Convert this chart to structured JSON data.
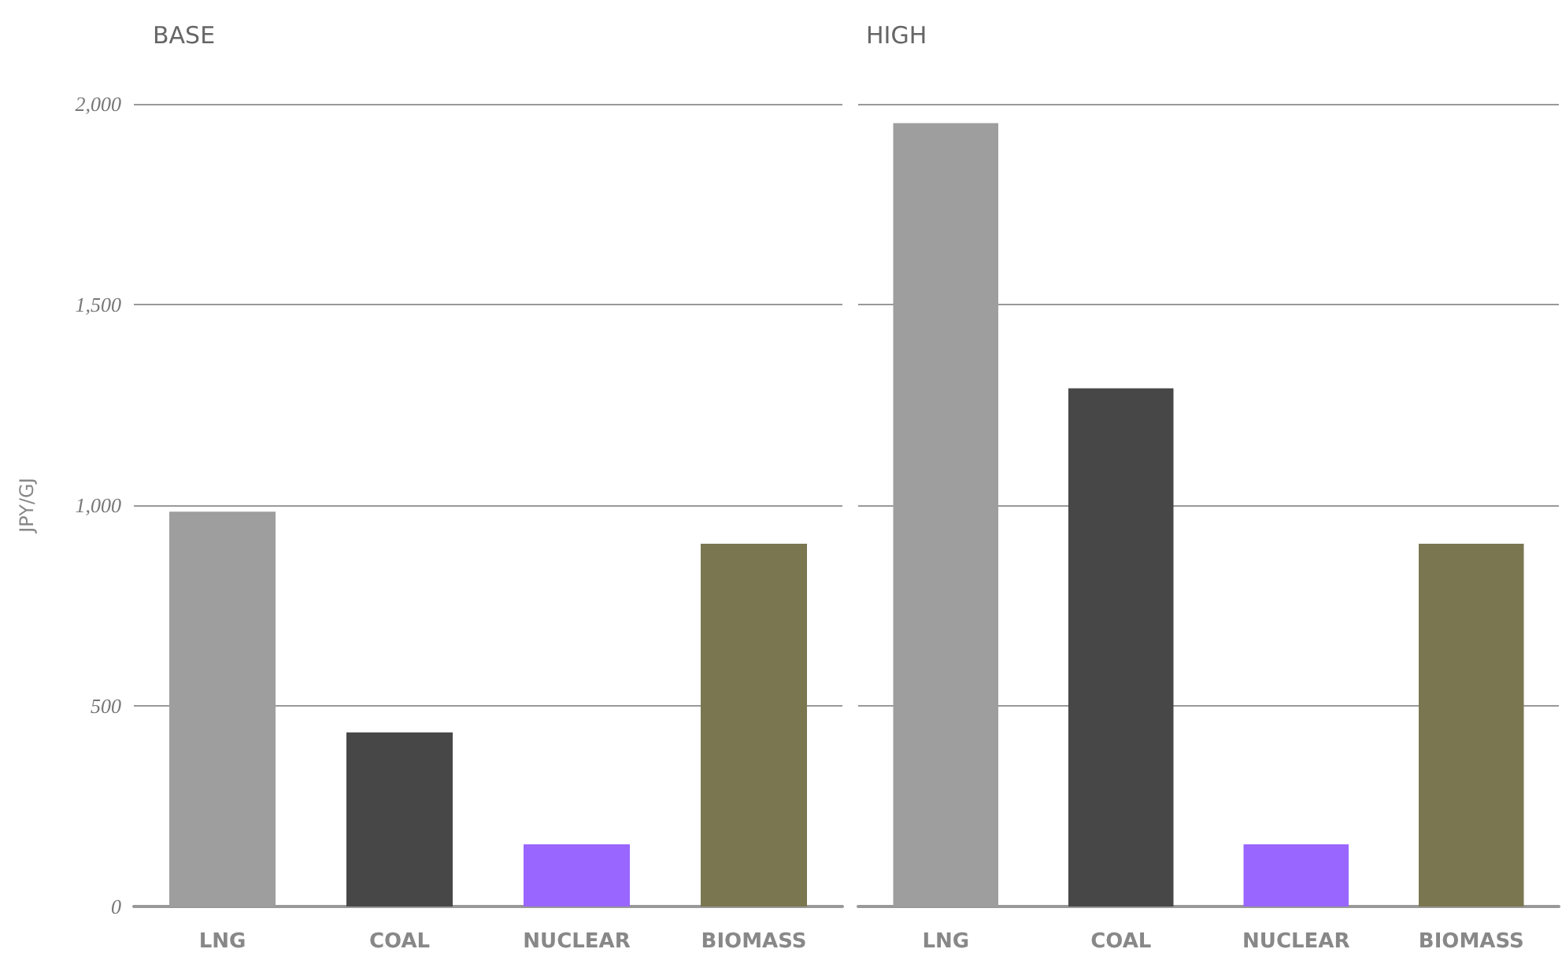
{
  "chart_data": [
    {
      "type": "bar",
      "title": "BASE",
      "ylabel": "JPY/GJ",
      "categories": [
        "LNG",
        "COAL",
        "NUCLEAR",
        "BIOMASS"
      ],
      "values": [
        984,
        434,
        155,
        904
      ],
      "colors": [
        "#9e9e9e",
        "#474747",
        "#9966ff",
        "#7a7650"
      ],
      "ylim": [
        0,
        2000
      ],
      "yticks": [
        {
          "value": 0,
          "label": "0"
        },
        {
          "value": 500,
          "label": "500"
        },
        {
          "value": 1000,
          "label": "1,000"
        },
        {
          "value": 1500,
          "label": "1,500"
        },
        {
          "value": 2000,
          "label": "2,000"
        }
      ],
      "grid": "y"
    },
    {
      "type": "bar",
      "title": "HIGH",
      "categories": [
        "LNG",
        "COAL",
        "NUCLEAR",
        "BIOMASS"
      ],
      "values": [
        1952,
        1291,
        155,
        904
      ],
      "colors": [
        "#9e9e9e",
        "#474747",
        "#9966ff",
        "#7a7650"
      ],
      "ylim": [
        0,
        2000
      ],
      "yticks": [
        {
          "value": 0,
          "label": null
        },
        {
          "value": 500,
          "label": null
        },
        {
          "value": 1000,
          "label": null
        },
        {
          "value": 1500,
          "label": null
        },
        {
          "value": 2000,
          "label": null
        }
      ],
      "grid": "y",
      "tick_labels": "x"
    }
  ]
}
